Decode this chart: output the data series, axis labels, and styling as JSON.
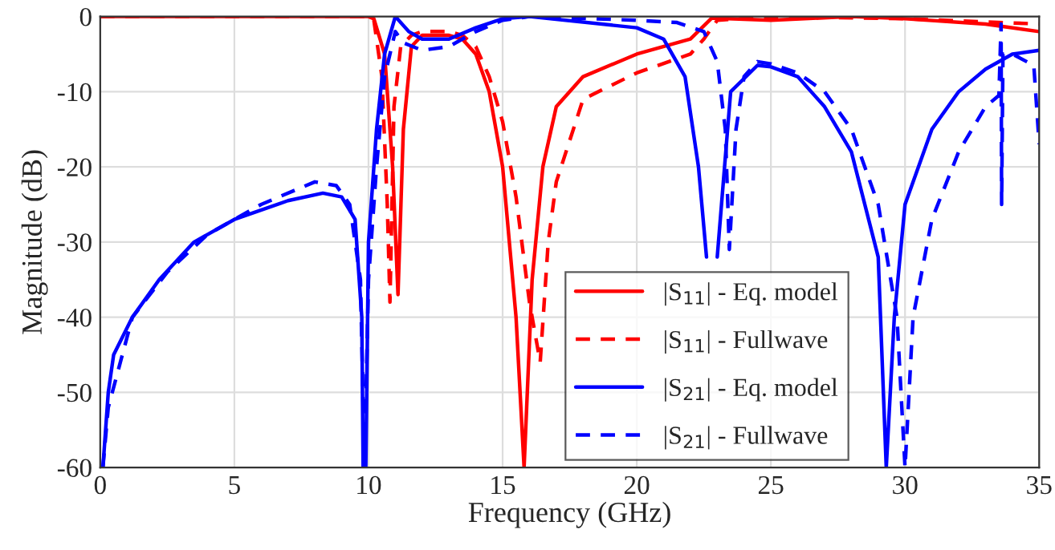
{
  "chart_data": {
    "type": "line",
    "xlabel": "Frequency (GHz)",
    "ylabel": "Magnitude (dB)",
    "xlim": [
      0,
      35
    ],
    "ylim": [
      -60,
      0
    ],
    "xticks": [
      0,
      5,
      10,
      15,
      20,
      25,
      30,
      35
    ],
    "yticks": [
      -60,
      -50,
      -40,
      -30,
      -20,
      -10,
      0
    ],
    "grid": true,
    "legend": "bottom right",
    "marker": "none",
    "series": [
      {
        "name": "|S$_{11}$| - Eq. model",
        "color": "#ff0000",
        "line_style": "solid",
        "x": [
          0,
          5,
          10,
          10.2,
          10.6,
          10.9,
          11.1,
          11.3,
          11.6,
          12,
          13,
          13.5,
          14,
          14.5,
          15,
          15.5,
          15.8,
          16.1,
          16.5,
          17,
          18,
          20,
          22,
          22.8,
          25,
          28,
          30,
          33,
          35
        ],
        "values": [
          0,
          0,
          0,
          -0.3,
          -5,
          -20,
          -37,
          -15,
          -4,
          -2.5,
          -2.5,
          -3,
          -5,
          -10,
          -20,
          -40,
          -60,
          -35,
          -20,
          -12,
          -8,
          -5,
          -3,
          -0.2,
          -0.5,
          0,
          -0.3,
          -1,
          -2
        ]
      },
      {
        "name": "|S$_{11}$| - Fullwave",
        "color": "#ff0000",
        "line_style": "dashed",
        "x": [
          0,
          5,
          10,
          10.2,
          10.5,
          10.7,
          10.8,
          10.95,
          11.2,
          11.6,
          12,
          13,
          13.5,
          14,
          14.5,
          15,
          15.5,
          16,
          16.4,
          16.7,
          17,
          18,
          20,
          22,
          22.5,
          23,
          25,
          30,
          35
        ],
        "values": [
          0,
          0,
          0,
          -0.5,
          -8,
          -25,
          -38,
          -12,
          -4,
          -2.5,
          -2,
          -2,
          -2.5,
          -4,
          -8,
          -14,
          -24,
          -38,
          -46,
          -30,
          -22,
          -11,
          -7.5,
          -5,
          -3,
          -0.5,
          0,
          -0.3,
          -1
        ]
      },
      {
        "name": "|S$_{21}$| - Eq. model",
        "color": "#0000ff",
        "line_style": "solid",
        "x": [
          0.1,
          0.3,
          0.5,
          1.2,
          2.2,
          3.5,
          5,
          7,
          8.3,
          9,
          9.5,
          9.75,
          9.8,
          9.9,
          10,
          10.3,
          10.6,
          11,
          11.5,
          12,
          13,
          14,
          15,
          16,
          20,
          21,
          21.8,
          22.3,
          22.6,
          22.8,
          23,
          23.5,
          24.5,
          25,
          26,
          27,
          28,
          29,
          29.3,
          29.6,
          30,
          31,
          32,
          33,
          34,
          35
        ],
        "values": [
          -60,
          -50,
          -45,
          -40,
          -35,
          -30,
          -27,
          -24.5,
          -23.5,
          -24,
          -27,
          -40,
          -60,
          -60,
          -30,
          -15,
          -5,
          0,
          -2,
          -3,
          -3,
          -1.5,
          -0.3,
          0,
          -1.5,
          -3,
          -8,
          -20,
          -32,
          null,
          -32,
          -10,
          -6.5,
          -6.7,
          -8,
          -12,
          -18,
          -32,
          -60,
          -40,
          -25,
          -15,
          -10,
          -7,
          -5,
          -4.5
        ]
      },
      {
        "name": "|S$_{21}$| - Fullwave",
        "color": "#0000ff",
        "line_style": "dashed",
        "x": [
          0.1,
          0.3,
          1.2,
          2.5,
          4,
          6,
          8,
          8.8,
          9.3,
          9.7,
          9.85,
          10,
          10.3,
          10.6,
          11,
          11.3,
          12,
          13,
          14,
          15,
          16,
          20,
          21.5,
          22.5,
          23,
          23.3,
          23.45,
          23.7,
          24,
          24.5,
          25,
          26,
          27,
          28,
          29,
          29.7,
          30,
          30.3,
          31,
          32,
          33,
          33.5,
          33.58,
          33.6,
          33.65,
          34,
          34.8,
          35
        ],
        "values": [
          -60,
          -52,
          -40,
          -34,
          -29,
          -25,
          -22,
          -22.5,
          -25,
          -35,
          -60,
          -35,
          -20,
          -8,
          -2,
          -3.5,
          -4.5,
          -4,
          -2,
          -0.5,
          0,
          -0.5,
          -0.8,
          -2,
          -6,
          -15,
          -31,
          -15,
          -8,
          -6,
          -6.3,
          -7.5,
          -10,
          -15,
          -25,
          -40,
          -60,
          -40,
          -27,
          -18,
          -12,
          -10.5,
          -1,
          -25,
          -5,
          -5,
          -6.5,
          -17
        ]
      }
    ]
  }
}
